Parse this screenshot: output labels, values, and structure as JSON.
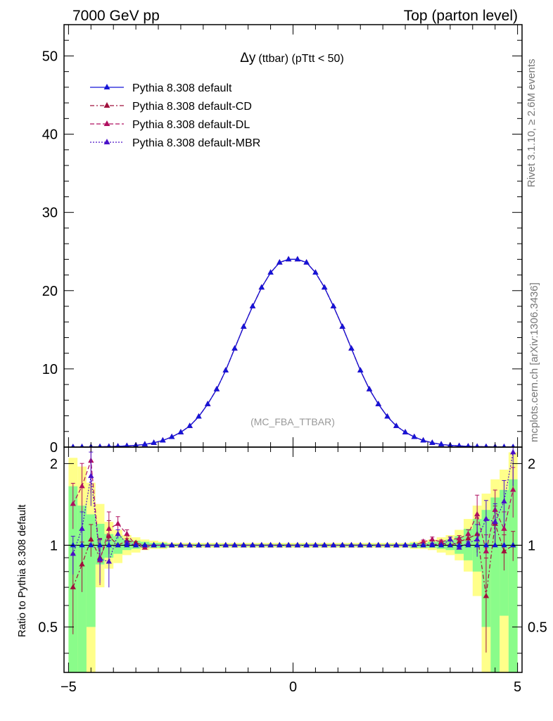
{
  "header": {
    "left": "7000 GeV pp",
    "right": "Top (parton level)"
  },
  "side": {
    "rivet": "Rivet 3.1.10, ≥ 2.6M events",
    "mcplots": "mcplots.cern.ch [arXiv:1306.3436]"
  },
  "chart_data": {
    "type": "line",
    "title": "Δy (ttbar) (pTtt < 50)",
    "title_main": "Δy",
    "title_rest": "(ttbar) (pTtt < 50)",
    "watermark": "(MC_FBA_TTBAR)",
    "xlim": [
      -5.1,
      5.1
    ],
    "ylim": [
      0,
      54
    ],
    "ratio_ylim": [
      0.34,
      2.3
    ],
    "ylabel_ratio": "Ratio to Pythia 8.308 default",
    "xticks": [
      -5,
      0,
      5
    ],
    "yticks_main": [
      0,
      10,
      20,
      30,
      40,
      50
    ],
    "yticks_ratio": [
      0.5,
      1,
      2
    ],
    "ytick_labels_ratio": [
      "0.5",
      "1",
      "2"
    ],
    "legend_position": "top-left",
    "series": [
      {
        "name": "Pythia 8.308 default",
        "color": "#1515d6",
        "dash": "",
        "style": "solid"
      },
      {
        "name": "Pythia 8.308 default-CD",
        "color": "#a0103c",
        "dash": "6 3 2 3",
        "style": "dash-dot"
      },
      {
        "name": "Pythia 8.308 default-DL",
        "color": "#b01060",
        "dash": "6 3",
        "style": "dashed"
      },
      {
        "name": "Pythia 8.308 default-MBR",
        "color": "#4a10c8",
        "dash": "2 2",
        "style": "dotted"
      }
    ],
    "x": [
      -4.9,
      -4.7,
      -4.5,
      -4.3,
      -4.1,
      -3.9,
      -3.7,
      -3.5,
      -3.3,
      -3.1,
      -2.9,
      -2.7,
      -2.5,
      -2.3,
      -2.1,
      -1.9,
      -1.7,
      -1.5,
      -1.3,
      -1.1,
      -0.9,
      -0.7,
      -0.5,
      -0.3,
      -0.1,
      0.1,
      0.3,
      0.5,
      0.7,
      0.9,
      1.1,
      1.3,
      1.5,
      1.7,
      1.9,
      2.1,
      2.3,
      2.5,
      2.7,
      2.9,
      3.1,
      3.3,
      3.5,
      3.7,
      3.9,
      4.1,
      4.3,
      4.5,
      4.7,
      4.9
    ],
    "main_values": [
      0.01,
      0.02,
      0.03,
      0.04,
      0.06,
      0.1,
      0.15,
      0.22,
      0.35,
      0.55,
      0.85,
      1.3,
      1.9,
      2.7,
      3.9,
      5.5,
      7.4,
      9.8,
      12.6,
      15.4,
      18.0,
      20.4,
      22.3,
      23.6,
      24.0,
      24.0,
      23.6,
      22.3,
      20.4,
      18.0,
      15.4,
      12.6,
      9.8,
      7.4,
      5.5,
      3.9,
      2.7,
      1.9,
      1.3,
      0.85,
      0.55,
      0.35,
      0.22,
      0.15,
      0.1,
      0.06,
      0.04,
      0.03,
      0.02,
      0.01
    ],
    "ratio_series": [
      {
        "name": "Pythia 8.308 default-CD",
        "values": [
          0.7,
          0.85,
          1.05,
          0.9,
          1.08,
          1.0,
          1.04,
          1.02,
          1.0,
          1.0,
          1.0,
          1.0,
          1.0,
          1.0,
          1.0,
          1.0,
          1.0,
          1.0,
          1.0,
          1.0,
          1.0,
          1.0,
          1.0,
          1.0,
          1.0,
          1.0,
          1.0,
          1.0,
          1.0,
          1.0,
          1.0,
          1.0,
          1.0,
          1.0,
          1.0,
          1.0,
          1.0,
          1.0,
          1.0,
          1.0,
          1.0,
          1.02,
          1.0,
          1.03,
          1.06,
          1.1,
          0.65,
          1.2,
          0.95,
          1.0
        ]
      },
      {
        "name": "Pythia 8.308 default-DL",
        "values": [
          1.42,
          1.65,
          2.05,
          0.88,
          1.15,
          1.2,
          1.1,
          1.0,
          0.98,
          1.0,
          1.0,
          1.0,
          1.0,
          1.0,
          1.0,
          1.0,
          1.0,
          1.0,
          1.0,
          1.0,
          1.0,
          1.0,
          1.0,
          1.0,
          1.0,
          1.0,
          1.0,
          1.0,
          1.0,
          1.0,
          1.0,
          1.0,
          1.0,
          1.0,
          1.0,
          1.0,
          1.0,
          1.0,
          1.0,
          1.03,
          1.05,
          1.03,
          1.05,
          1.06,
          1.1,
          1.3,
          0.95,
          1.35,
          1.15,
          1.6
        ]
      },
      {
        "name": "Pythia 8.308 default-MBR",
        "values": [
          0.93,
          1.15,
          1.8,
          0.89,
          0.87,
          1.1,
          1.02,
          1.0,
          1.0,
          1.0,
          1.0,
          1.0,
          1.0,
          1.0,
          1.0,
          1.0,
          1.0,
          1.0,
          1.0,
          1.0,
          1.0,
          1.0,
          1.0,
          1.0,
          1.0,
          1.0,
          1.0,
          1.0,
          1.0,
          1.0,
          1.0,
          1.0,
          1.0,
          1.0,
          1.0,
          1.0,
          1.0,
          1.0,
          1.0,
          1.0,
          1.01,
          1.0,
          1.05,
          0.98,
          1.02,
          1.05,
          1.25,
          1.22,
          1.45,
          2.2
        ]
      }
    ],
    "band_green": [
      [
        0.3,
        1.65
      ],
      [
        0.3,
        1.4
      ],
      [
        0.5,
        1.3
      ],
      [
        0.85,
        1.2
      ],
      [
        0.9,
        1.1
      ],
      [
        0.93,
        1.08
      ],
      [
        0.96,
        1.05
      ],
      [
        0.97,
        1.04
      ],
      [
        0.98,
        1.03
      ],
      [
        0.98,
        1.02
      ],
      [
        0.98,
        1.02
      ],
      [
        0.99,
        1.01
      ],
      [
        0.99,
        1.01
      ],
      [
        0.99,
        1.01
      ],
      [
        0.99,
        1.01
      ],
      [
        0.99,
        1.01
      ],
      [
        0.99,
        1.01
      ],
      [
        0.99,
        1.01
      ],
      [
        0.99,
        1.01
      ],
      [
        0.99,
        1.01
      ],
      [
        0.99,
        1.01
      ],
      [
        0.99,
        1.01
      ],
      [
        0.99,
        1.01
      ],
      [
        0.99,
        1.01
      ],
      [
        0.99,
        1.01
      ],
      [
        0.99,
        1.01
      ],
      [
        0.99,
        1.01
      ],
      [
        0.99,
        1.01
      ],
      [
        0.99,
        1.01
      ],
      [
        0.99,
        1.01
      ],
      [
        0.99,
        1.01
      ],
      [
        0.99,
        1.01
      ],
      [
        0.99,
        1.01
      ],
      [
        0.99,
        1.01
      ],
      [
        0.99,
        1.01
      ],
      [
        0.99,
        1.01
      ],
      [
        0.99,
        1.01
      ],
      [
        0.99,
        1.01
      ],
      [
        0.98,
        1.02
      ],
      [
        0.98,
        1.02
      ],
      [
        0.98,
        1.03
      ],
      [
        0.97,
        1.04
      ],
      [
        0.96,
        1.05
      ],
      [
        0.93,
        1.08
      ],
      [
        0.88,
        1.15
      ],
      [
        0.8,
        1.25
      ],
      [
        0.5,
        1.35
      ],
      [
        0.3,
        1.5
      ],
      [
        0.55,
        1.6
      ],
      [
        0.3,
        1.75
      ]
    ],
    "band_yellow": [
      [
        0.3,
        2.1
      ],
      [
        0.3,
        1.95
      ],
      [
        0.3,
        1.7
      ],
      [
        0.7,
        1.42
      ],
      [
        0.82,
        1.22
      ],
      [
        0.86,
        1.14
      ],
      [
        0.92,
        1.09
      ],
      [
        0.94,
        1.07
      ],
      [
        0.96,
        1.05
      ],
      [
        0.97,
        1.04
      ],
      [
        0.97,
        1.03
      ],
      [
        0.98,
        1.02
      ],
      [
        0.98,
        1.02
      ],
      [
        0.98,
        1.02
      ],
      [
        0.98,
        1.02
      ],
      [
        0.98,
        1.02
      ],
      [
        0.98,
        1.02
      ],
      [
        0.98,
        1.02
      ],
      [
        0.98,
        1.02
      ],
      [
        0.98,
        1.02
      ],
      [
        0.98,
        1.02
      ],
      [
        0.98,
        1.02
      ],
      [
        0.98,
        1.02
      ],
      [
        0.98,
        1.02
      ],
      [
        0.98,
        1.02
      ],
      [
        0.98,
        1.02
      ],
      [
        0.98,
        1.02
      ],
      [
        0.98,
        1.02
      ],
      [
        0.98,
        1.02
      ],
      [
        0.98,
        1.02
      ],
      [
        0.98,
        1.02
      ],
      [
        0.98,
        1.02
      ],
      [
        0.98,
        1.02
      ],
      [
        0.98,
        1.02
      ],
      [
        0.98,
        1.02
      ],
      [
        0.98,
        1.02
      ],
      [
        0.98,
        1.02
      ],
      [
        0.98,
        1.02
      ],
      [
        0.97,
        1.03
      ],
      [
        0.97,
        1.04
      ],
      [
        0.96,
        1.05
      ],
      [
        0.94,
        1.07
      ],
      [
        0.92,
        1.09
      ],
      [
        0.88,
        1.14
      ],
      [
        0.8,
        1.25
      ],
      [
        0.65,
        1.4
      ],
      [
        0.3,
        1.55
      ],
      [
        0.3,
        1.75
      ],
      [
        0.3,
        1.9
      ],
      [
        0.3,
        2.2
      ]
    ]
  }
}
